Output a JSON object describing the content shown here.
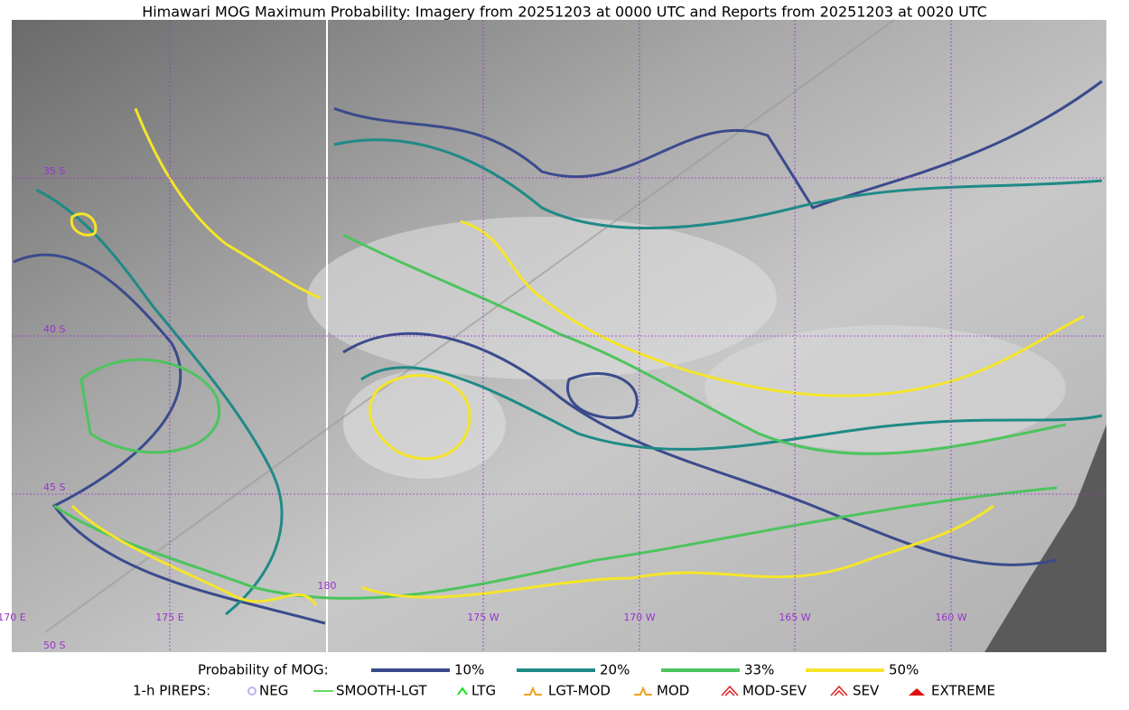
{
  "title": "Himawari MOG Maximum Probability: Imagery from 20251203 at 0000 UTC and Reports from 20251203 at 0020 UTC",
  "grid_labels": {
    "latitudes": [
      "35 S",
      "40 S",
      "45 S",
      "50 S"
    ],
    "longitudes": [
      "170 E",
      "175 E",
      "180",
      "175 W",
      "170 W",
      "165 W",
      "160 W"
    ]
  },
  "legend": {
    "probability": {
      "label": "Probability of MOG:",
      "items": [
        {
          "label": "10%",
          "color": "#3a4b8c"
        },
        {
          "label": "20%",
          "color": "#1f8a86"
        },
        {
          "label": "33%",
          "color": "#4cc45e"
        },
        {
          "label": "50%",
          "color": "#f5e52a"
        }
      ]
    },
    "pireps": {
      "label": "1-h PIREPS:",
      "items": [
        {
          "label": "NEG",
          "color": "#b9b4f0"
        },
        {
          "label": "SMOOTH-LGT",
          "color": "#33cc33"
        },
        {
          "label": "LTG",
          "color": "#22dd22"
        },
        {
          "label": "LGT-MOD",
          "color": "#f0a020"
        },
        {
          "label": "MOD",
          "color": "#f0a020"
        },
        {
          "label": "MOD-SEV",
          "color": "#e02020"
        },
        {
          "label": "SEV",
          "color": "#e02020"
        },
        {
          "label": "EXTREME",
          "color": "#e01010"
        }
      ]
    }
  }
}
